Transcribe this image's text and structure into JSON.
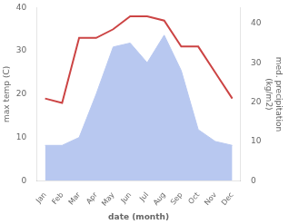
{
  "chart_data": {
    "type": "line",
    "categories": [
      "Jan",
      "Feb",
      "Mar",
      "Apr",
      "May",
      "Jun",
      "Jul",
      "Aug",
      "Sep",
      "Oct",
      "Nov",
      "Dec"
    ],
    "xlabel": "date (month)",
    "ylabel": "max temp (C)",
    "y2label": "med. precipitation\n(kg/m2)",
    "series": [
      {
        "type": "area",
        "color": "#b8c8f0",
        "axis": "y2",
        "values": [
          9,
          9,
          11,
          22,
          34,
          35,
          30,
          37,
          28,
          13,
          10,
          9
        ]
      },
      {
        "type": "line",
        "color": "#cc4444",
        "values": [
          19,
          18,
          33,
          33,
          35,
          38,
          38,
          37,
          31,
          31,
          25,
          19
        ]
      }
    ],
    "ylim": [
      0,
      40
    ],
    "yticks": [
      0,
      10,
      20,
      30,
      40
    ],
    "y2lim": [
      0,
      44
    ],
    "y2ticks": [
      0,
      10,
      20,
      30,
      40
    ],
    "grid": false
  }
}
